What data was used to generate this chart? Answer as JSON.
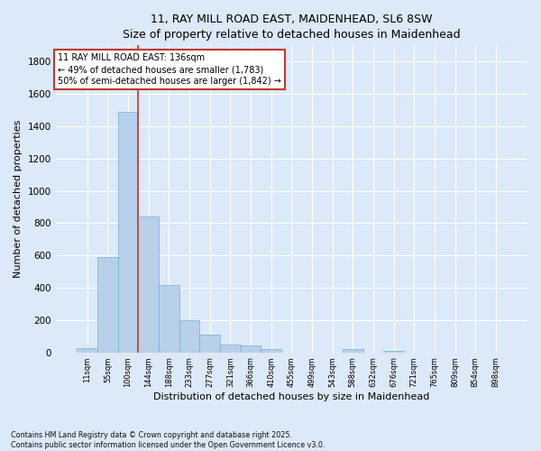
{
  "title_line1": "11, RAY MILL ROAD EAST, MAIDENHEAD, SL6 8SW",
  "title_line2": "Size of property relative to detached houses in Maidenhead",
  "xlabel": "Distribution of detached houses by size in Maidenhead",
  "ylabel": "Number of detached properties",
  "categories": [
    "11sqm",
    "55sqm",
    "100sqm",
    "144sqm",
    "188sqm",
    "233sqm",
    "277sqm",
    "321sqm",
    "366sqm",
    "410sqm",
    "455sqm",
    "499sqm",
    "543sqm",
    "588sqm",
    "632sqm",
    "676sqm",
    "721sqm",
    "765sqm",
    "809sqm",
    "854sqm",
    "898sqm"
  ],
  "values": [
    28,
    590,
    1490,
    840,
    415,
    200,
    110,
    50,
    42,
    18,
    0,
    0,
    0,
    18,
    0,
    8,
    0,
    0,
    0,
    0,
    0
  ],
  "bar_color": "#b8d0ea",
  "bar_edge_color": "#7aafd4",
  "vline_index": 2.5,
  "vline_color": "#c0392b",
  "annotation_text": "11 RAY MILL ROAD EAST: 136sqm\n← 49% of detached houses are smaller (1,783)\n50% of semi-detached houses are larger (1,842) →",
  "annotation_box_facecolor": "#ffffff",
  "annotation_box_edgecolor": "#c0392b",
  "ylim_max": 1900,
  "yticks": [
    0,
    200,
    400,
    600,
    800,
    1000,
    1200,
    1400,
    1600,
    1800
  ],
  "bg_color": "#dce9f8",
  "grid_color": "#c8d8f0",
  "footer": "Contains HM Land Registry data © Crown copyright and database right 2025.\nContains public sector information licensed under the Open Government Licence v3.0."
}
